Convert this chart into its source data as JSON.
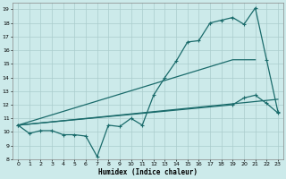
{
  "xlabel": "Humidex (Indice chaleur)",
  "bg_color": "#cceaea",
  "grid_color": "#aacccc",
  "line_color": "#1a6b6b",
  "xlim": [
    -0.5,
    23.5
  ],
  "ylim": [
    8,
    19.5
  ],
  "xticks": [
    0,
    1,
    2,
    3,
    4,
    5,
    6,
    7,
    8,
    9,
    10,
    11,
    12,
    13,
    14,
    15,
    16,
    17,
    18,
    19,
    20,
    21,
    22,
    23
  ],
  "yticks": [
    8,
    9,
    10,
    11,
    12,
    13,
    14,
    15,
    16,
    17,
    18,
    19
  ],
  "line1_x": [
    0,
    1,
    2,
    3,
    4,
    5,
    6,
    7,
    8,
    9,
    10,
    11,
    12,
    13,
    14,
    15,
    16,
    17,
    18,
    19,
    20,
    21,
    22,
    23
  ],
  "line1_y": [
    10.5,
    9.9,
    10.1,
    10.1,
    9.8,
    9.8,
    9.7,
    8.2,
    10.5,
    10.4,
    11.0,
    10.5,
    12.7,
    14.0,
    15.2,
    16.6,
    16.7,
    18.0,
    18.2,
    18.4,
    17.9,
    19.1,
    15.3,
    11.5
  ],
  "line2_x": [
    0,
    19,
    21
  ],
  "line2_y": [
    10.5,
    15.3,
    15.3
  ],
  "line3_x": [
    0,
    23
  ],
  "line3_y": [
    10.5,
    12.4
  ],
  "line4_x": [
    0,
    19,
    20,
    21,
    22,
    23
  ],
  "line4_y": [
    10.5,
    12.0,
    12.5,
    12.7,
    12.1,
    11.4
  ]
}
